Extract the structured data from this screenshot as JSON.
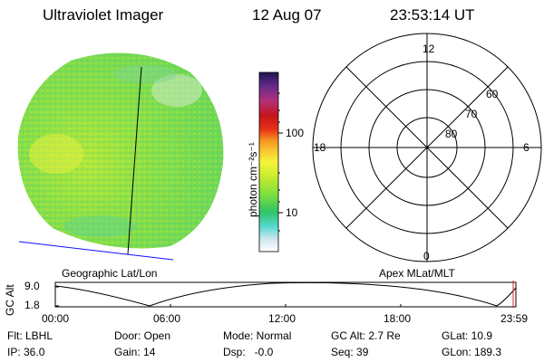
{
  "header": {
    "instrument": "Ultraviolet Imager",
    "date": "12 Aug 07",
    "time": "23:53:14 UT"
  },
  "image_panel": {
    "caption": "Geographic Lat/Lon"
  },
  "colorbar": {
    "unit_label": "photon cm⁻²s⁻¹",
    "ticks": [
      "10",
      "100"
    ],
    "colors": [
      "#ffffff",
      "#cfe6ee",
      "#57d9d0",
      "#2ec36a",
      "#7ee03c",
      "#c8ec2e",
      "#f6f43a",
      "#f8c830",
      "#f79520",
      "#e83418",
      "#c4141c",
      "#b3307a",
      "#6a2a8a",
      "#1c1650"
    ]
  },
  "polar_panel": {
    "caption": "Apex MLat/MLT",
    "mlt_labels": {
      "top": "12",
      "left": "18",
      "right": "6",
      "bottom": "0"
    },
    "mlat_labels": [
      "60",
      "70",
      "80"
    ]
  },
  "timeline": {
    "ylabel": "GC Alt",
    "ymax": "9.0",
    "ymin": "1.8",
    "ticks": [
      "00:00",
      "06:00",
      "12:00",
      "18:00",
      "23:59"
    ]
  },
  "info": {
    "row1": {
      "flt": "Flt: LBHL",
      "door": "Door: Open",
      "mode": "Mode: Normal",
      "gcalt": "GC Alt: 2.7 Re",
      "glat": "GLat: 10.9"
    },
    "row2": {
      "ip": "IP: 36.0",
      "gain": "Gain: 14",
      "dsp": "Dsp:   -0.0",
      "seq": "Seq: 39",
      "glon": "GLon: 189.3"
    }
  }
}
